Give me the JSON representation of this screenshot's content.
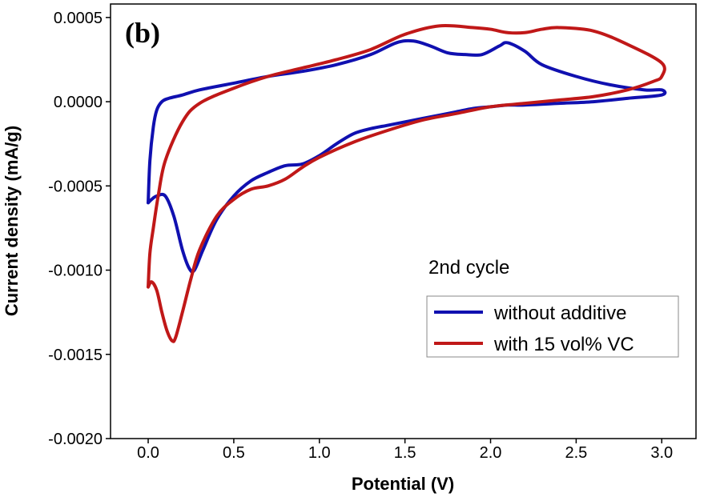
{
  "chart_data": {
    "type": "line",
    "panel_label": "(b)",
    "xlabel": "Potential (V)",
    "ylabel": "Current density (mA/g)",
    "xlim": [
      -0.22,
      3.2
    ],
    "ylim": [
      -0.002,
      0.00058
    ],
    "x_ticks": [
      0.0,
      0.5,
      1.0,
      1.5,
      2.0,
      2.5,
      3.0
    ],
    "x_tick_labels": [
      "0.0",
      "0.5",
      "1.0",
      "1.5",
      "2.0",
      "2.5",
      "3.0"
    ],
    "y_ticks": [
      0.0005,
      0.0,
      -0.0005,
      -0.001,
      -0.0015,
      -0.002
    ],
    "y_tick_labels": [
      "0.0005",
      "0.0000",
      "-0.0005",
      "-0.0010",
      "-0.0015",
      "-0.0020"
    ],
    "grid": false,
    "legend_title": "2nd cycle",
    "legend_position": "right",
    "series": [
      {
        "name": "without additive",
        "color": "#1010b0",
        "x": [
          0.0,
          0.02,
          0.05,
          0.1,
          0.15,
          0.2,
          0.24,
          0.27,
          0.32,
          0.4,
          0.5,
          0.6,
          0.7,
          0.8,
          0.9,
          1.0,
          1.1,
          1.2,
          1.3,
          1.4,
          1.5,
          1.6,
          1.7,
          1.8,
          1.9,
          2.0,
          2.1,
          2.2,
          2.4,
          2.6,
          2.8,
          3.0,
          3.0,
          2.9,
          2.7,
          2.5,
          2.3,
          2.2,
          2.1,
          2.05,
          1.95,
          1.85,
          1.75,
          1.65,
          1.55,
          1.45,
          1.3,
          1.1,
          0.9,
          0.7,
          0.5,
          0.3,
          0.2,
          0.12,
          0.08,
          0.05,
          0.03,
          0.01,
          0.0
        ],
        "y": [
          -0.0006,
          -0.00058,
          -0.00056,
          -0.00056,
          -0.00068,
          -0.00088,
          -0.00099,
          -0.001,
          -0.00088,
          -0.0007,
          -0.00056,
          -0.00047,
          -0.00042,
          -0.00038,
          -0.00037,
          -0.00032,
          -0.00025,
          -0.00019,
          -0.00016,
          -0.00014,
          -0.00012,
          -0.0001,
          -8e-05,
          -6e-05,
          -4e-05,
          -3e-05,
          -2e-05,
          -2e-05,
          -1e-05,
          0.0,
          2e-05,
          4e-05,
          7e-05,
          7e-05,
          0.0001,
          0.00015,
          0.00022,
          0.0003,
          0.00035,
          0.00033,
          0.00028,
          0.00028,
          0.00029,
          0.00033,
          0.00036,
          0.00035,
          0.00028,
          0.00022,
          0.00018,
          0.00015,
          0.00011,
          7e-05,
          4e-05,
          2e-05,
          0.0,
          -5e-05,
          -0.00015,
          -0.00035,
          -0.0006
        ]
      },
      {
        "name": "with 15 vol% VC",
        "color": "#c01818",
        "x": [
          0.0,
          0.02,
          0.05,
          0.08,
          0.11,
          0.14,
          0.16,
          0.2,
          0.25,
          0.3,
          0.4,
          0.5,
          0.6,
          0.7,
          0.8,
          0.9,
          1.0,
          1.2,
          1.4,
          1.6,
          1.8,
          2.0,
          2.2,
          2.4,
          2.6,
          2.8,
          2.95,
          3.0,
          3.0,
          2.8,
          2.6,
          2.4,
          2.3,
          2.2,
          2.1,
          2.0,
          1.9,
          1.7,
          1.5,
          1.3,
          1.1,
          0.9,
          0.7,
          0.5,
          0.3,
          0.2,
          0.1,
          0.06,
          0.03,
          0.01,
          0.0
        ],
        "y": [
          -0.0011,
          -0.00107,
          -0.00112,
          -0.00125,
          -0.00136,
          -0.00142,
          -0.0014,
          -0.00125,
          -0.00105,
          -0.00088,
          -0.00068,
          -0.00058,
          -0.00052,
          -0.0005,
          -0.00046,
          -0.00039,
          -0.00033,
          -0.00024,
          -0.00017,
          -0.00011,
          -7e-05,
          -3e-05,
          -1e-05,
          1e-05,
          3e-05,
          7e-05,
          0.00012,
          0.00015,
          0.00023,
          0.00034,
          0.00042,
          0.00044,
          0.00043,
          0.00041,
          0.00041,
          0.00043,
          0.00044,
          0.00045,
          0.0004,
          0.00031,
          0.00025,
          0.0002,
          0.00015,
          8e-05,
          -1e-05,
          -0.00012,
          -0.00035,
          -0.00055,
          -0.00075,
          -0.0009,
          -0.0011
        ]
      }
    ]
  }
}
